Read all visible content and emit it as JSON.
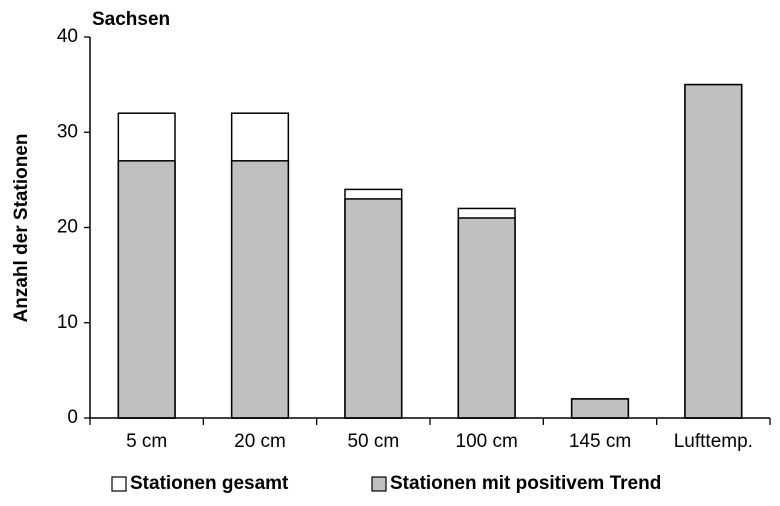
{
  "chart_data": {
    "type": "bar",
    "barmode": "overlay",
    "title": "Sachsen",
    "y_label": "Anzahl der Stationen",
    "categories": [
      "5 cm",
      "20 cm",
      "50 cm",
      "100 cm",
      "145 cm",
      "Lufttemp."
    ],
    "series": [
      {
        "name": "Stationen gesamt",
        "color": "#ffffff",
        "values": [
          32,
          32,
          24,
          22,
          2,
          35
        ]
      },
      {
        "name": "Stationen mit positivem Trend",
        "color": "#c0c0c0",
        "values": [
          27,
          27,
          23,
          21,
          2,
          35
        ]
      }
    ],
    "ylim": [
      0,
      40
    ],
    "yticks": [
      0,
      10,
      20,
      30,
      40
    ],
    "grid": false,
    "legend": "bottom"
  }
}
